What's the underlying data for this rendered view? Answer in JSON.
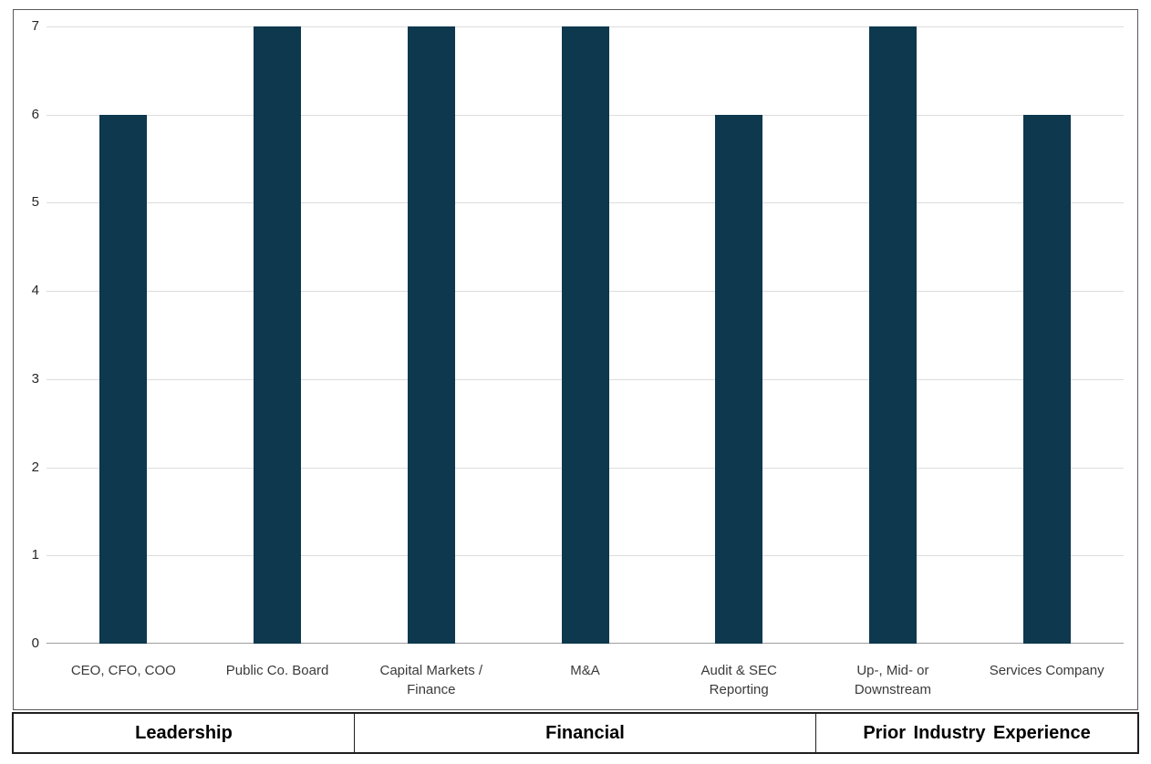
{
  "chart_data": {
    "type": "bar",
    "title": "",
    "categories": [
      "CEO, CFO, COO",
      "Public Co. Board",
      "Capital Markets /\nFinance",
      "M&A",
      "Audit & SEC\nReporting",
      "Up-, Mid- or\nDownstream",
      "Services Company"
    ],
    "values": [
      6,
      7,
      7,
      7,
      6,
      7,
      6
    ],
    "groups": [
      {
        "label": "Leadership",
        "span": 2
      },
      {
        "label": "Financial",
        "span": 3
      },
      {
        "label": "Prior Industry Experience",
        "span": 2
      }
    ],
    "y_ticks": [
      0,
      1,
      2,
      3,
      4,
      5,
      6,
      7
    ],
    "ylim": [
      0,
      7
    ],
    "grid": true,
    "legend": false,
    "xlabel": "",
    "ylabel": "",
    "bar_color": "#0e384e",
    "gridline_color": "#dcdcdc",
    "axis_line_color": "#9e9e9e"
  }
}
